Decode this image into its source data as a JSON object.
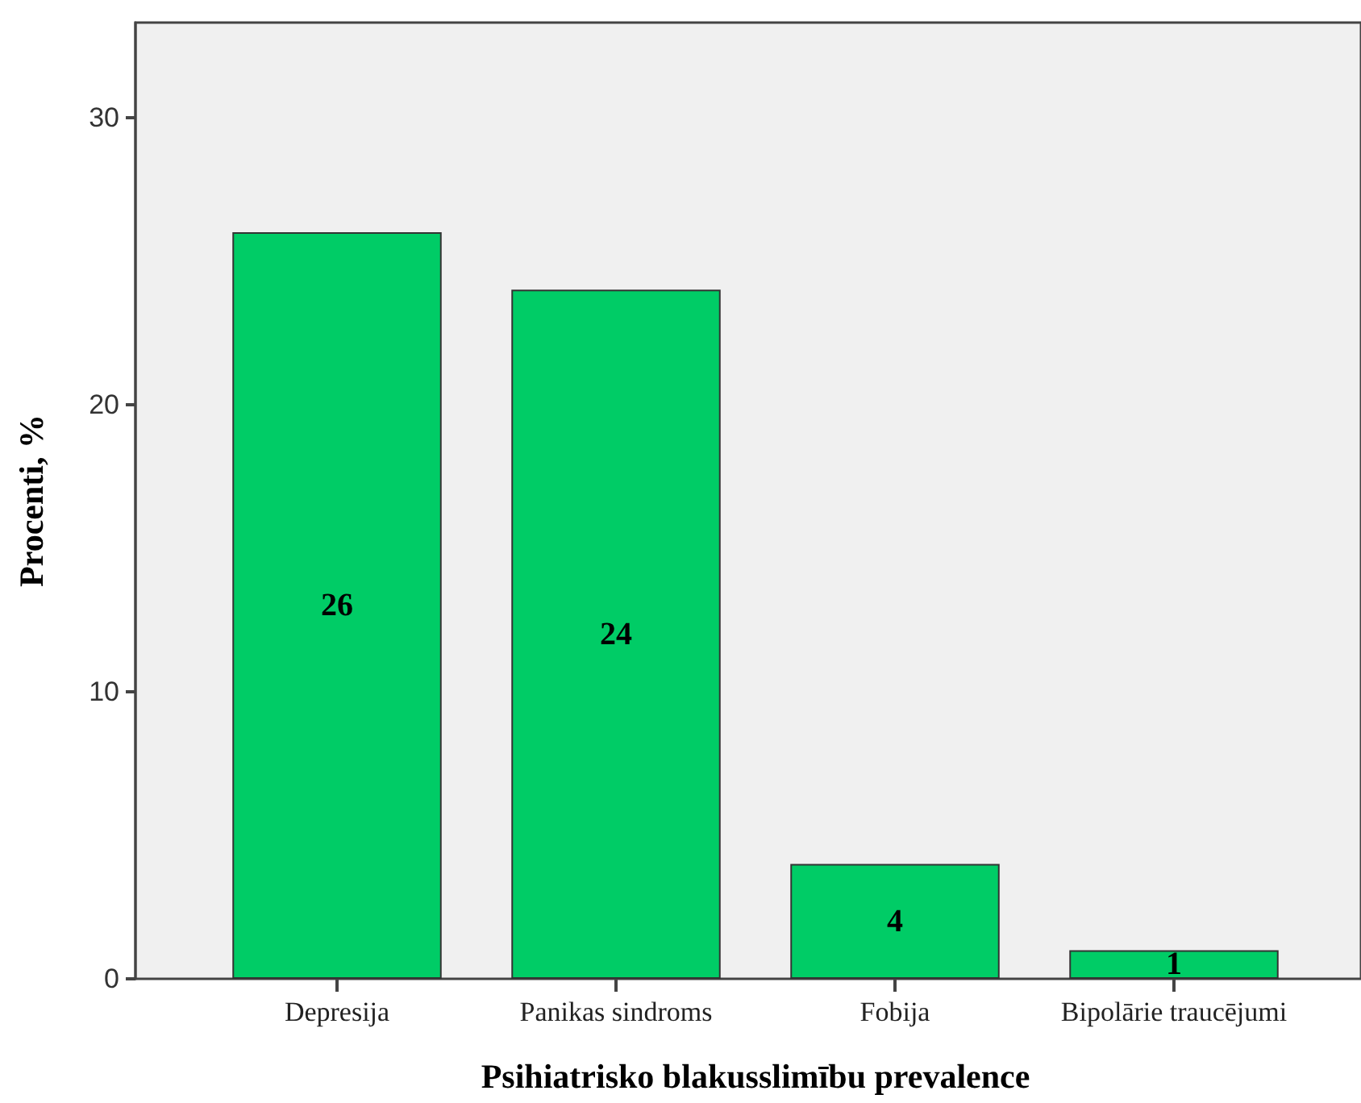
{
  "chart_data": {
    "type": "bar",
    "xlabel": "Psihiatrisko blakusslimību prevalence",
    "ylabel": "Procenti, %",
    "categories": [
      "Depresija",
      "Panikas sindroms",
      "Fobija",
      "Bipolārie traucējumi"
    ],
    "values": [
      26,
      24,
      4,
      1
    ],
    "color": "#00cc66",
    "ylim": [
      0,
      33.3
    ],
    "yticks": [
      0,
      10,
      20,
      30
    ],
    "data_labels": true
  }
}
